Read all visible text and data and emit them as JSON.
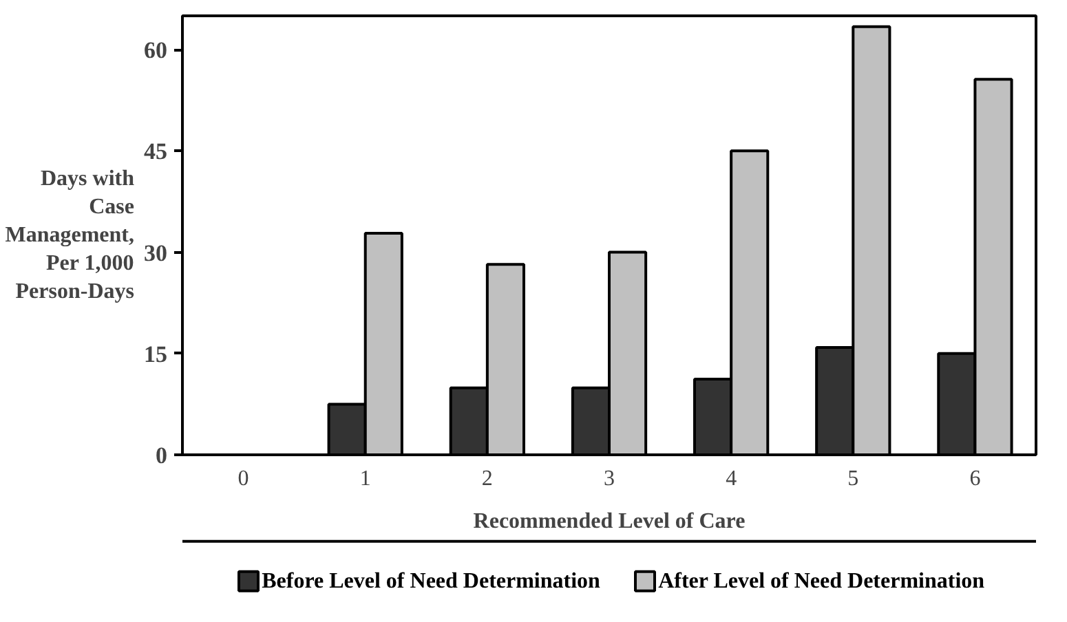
{
  "chart_data": {
    "type": "bar",
    "xlabel": "Recommended Level of Care",
    "ylabel": "Days with\nCase\nManagement,\nPer 1,000\nPerson-Days",
    "categories": [
      "0",
      "1",
      "2",
      "3",
      "4",
      "5",
      "6"
    ],
    "series": [
      {
        "name": "Before Level of Need Determination",
        "color": "#333333",
        "values": [
          null,
          7.5,
          9.9,
          9.9,
          11.2,
          15.9,
          15.0
        ]
      },
      {
        "name": "After Level of Need Determination",
        "color": "#c0c0c0",
        "values": [
          null,
          32.8,
          28.2,
          30.0,
          45.0,
          63.4,
          55.6
        ]
      }
    ],
    "ylim": [
      0,
      65
    ],
    "yticks": [
      0,
      15,
      30,
      45,
      60
    ],
    "grid": false,
    "legend": "bottom"
  }
}
